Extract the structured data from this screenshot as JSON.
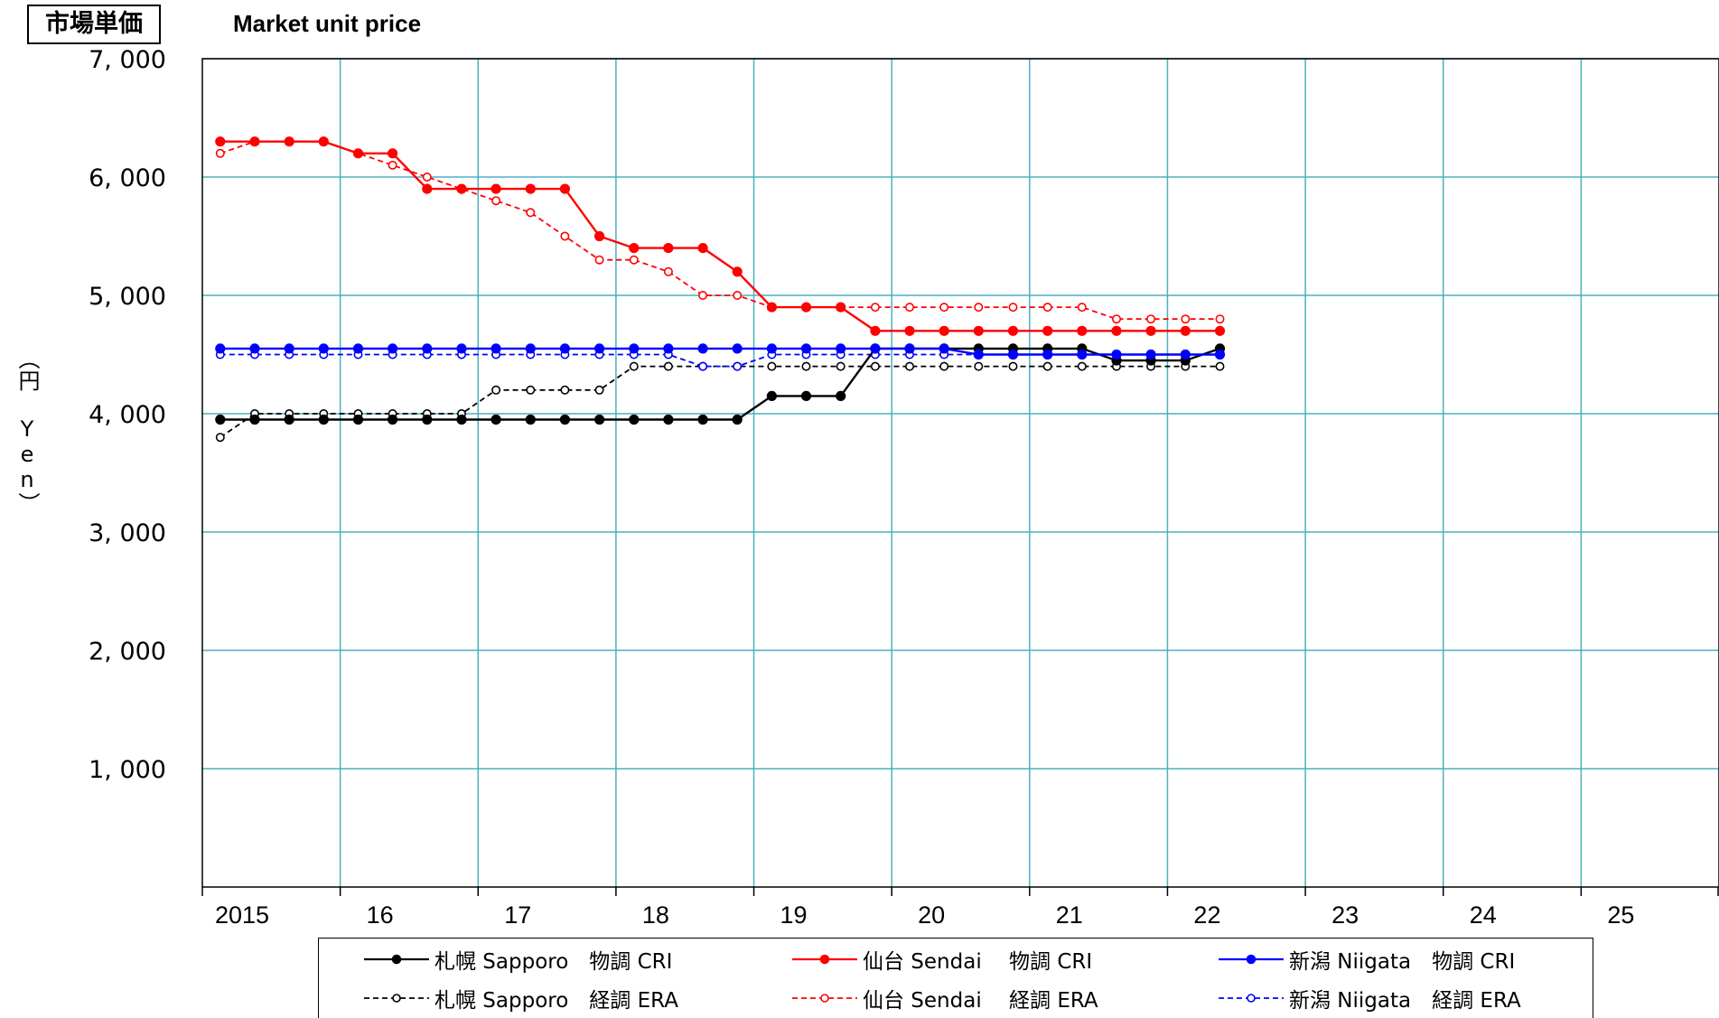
{
  "title_jp": "市場単価",
  "title_en": "Market unit price",
  "chart_data": {
    "type": "line",
    "ylabel": "（円 Yen）",
    "xlim": [
      2015,
      2026
    ],
    "ylim": [
      0,
      7000
    ],
    "yticks": [
      1000,
      2000,
      3000,
      4000,
      5000,
      6000,
      7000
    ],
    "ytick_labels": [
      "1, 000",
      "2, 000",
      "3, 000",
      "4, 000",
      "5, 000",
      "6, 000",
      "7, 000"
    ],
    "xticks": [
      2015,
      2016,
      2017,
      2018,
      2019,
      2020,
      2021,
      2022,
      2023,
      2024,
      2025
    ],
    "xtick_labels": [
      "2015",
      "16",
      "17",
      "18",
      "19",
      "20",
      "21",
      "22",
      "23",
      "24",
      "25"
    ],
    "grid": true,
    "legend_position": "bottom",
    "series": [
      {
        "name": "札幌 Sapporo　物調 CRI",
        "color": "#000000",
        "style": "solid",
        "marker": "filled",
        "points": [
          [
            2015.13,
            3950
          ],
          [
            2015.38,
            3950
          ],
          [
            2015.63,
            3950
          ],
          [
            2015.88,
            3950
          ],
          [
            2016.13,
            3950
          ],
          [
            2016.38,
            3950
          ],
          [
            2016.63,
            3950
          ],
          [
            2016.88,
            3950
          ],
          [
            2017.13,
            3950
          ],
          [
            2017.38,
            3950
          ],
          [
            2017.63,
            3950
          ],
          [
            2017.88,
            3950
          ],
          [
            2018.13,
            3950
          ],
          [
            2018.38,
            3950
          ],
          [
            2018.63,
            3950
          ],
          [
            2018.88,
            3950
          ],
          [
            2019.13,
            4150
          ],
          [
            2019.38,
            4150
          ],
          [
            2019.63,
            4150
          ],
          [
            2019.88,
            4550
          ],
          [
            2020.13,
            4550
          ],
          [
            2020.38,
            4550
          ],
          [
            2020.63,
            4550
          ],
          [
            2020.88,
            4550
          ],
          [
            2021.13,
            4550
          ],
          [
            2021.38,
            4550
          ],
          [
            2021.63,
            4450
          ],
          [
            2021.88,
            4450
          ],
          [
            2022.13,
            4450
          ],
          [
            2022.38,
            4550
          ]
        ]
      },
      {
        "name": "札幌 Sapporo　経調 ERA",
        "color": "#000000",
        "style": "dashed",
        "marker": "hollow",
        "points": [
          [
            2015.13,
            3800
          ],
          [
            2015.38,
            4000
          ],
          [
            2015.63,
            4000
          ],
          [
            2015.88,
            4000
          ],
          [
            2016.13,
            4000
          ],
          [
            2016.38,
            4000
          ],
          [
            2016.63,
            4000
          ],
          [
            2016.88,
            4000
          ],
          [
            2017.13,
            4200
          ],
          [
            2017.38,
            4200
          ],
          [
            2017.63,
            4200
          ],
          [
            2017.88,
            4200
          ],
          [
            2018.13,
            4400
          ],
          [
            2018.38,
            4400
          ],
          [
            2018.63,
            4400
          ],
          [
            2018.88,
            4400
          ],
          [
            2019.13,
            4400
          ],
          [
            2019.38,
            4400
          ],
          [
            2019.63,
            4400
          ],
          [
            2019.88,
            4400
          ],
          [
            2020.13,
            4400
          ],
          [
            2020.38,
            4400
          ],
          [
            2020.63,
            4400
          ],
          [
            2020.88,
            4400
          ],
          [
            2021.13,
            4400
          ],
          [
            2021.38,
            4400
          ],
          [
            2021.63,
            4400
          ],
          [
            2021.88,
            4400
          ],
          [
            2022.13,
            4400
          ],
          [
            2022.38,
            4400
          ]
        ]
      },
      {
        "name": "仙台 Sendai　 物調 CRI",
        "color": "#ff0000",
        "style": "solid",
        "marker": "filled",
        "points": [
          [
            2015.13,
            6300
          ],
          [
            2015.38,
            6300
          ],
          [
            2015.63,
            6300
          ],
          [
            2015.88,
            6300
          ],
          [
            2016.13,
            6200
          ],
          [
            2016.38,
            6200
          ],
          [
            2016.63,
            5900
          ],
          [
            2016.88,
            5900
          ],
          [
            2017.13,
            5900
          ],
          [
            2017.38,
            5900
          ],
          [
            2017.63,
            5900
          ],
          [
            2017.88,
            5500
          ],
          [
            2018.13,
            5400
          ],
          [
            2018.38,
            5400
          ],
          [
            2018.63,
            5400
          ],
          [
            2018.88,
            5200
          ],
          [
            2019.13,
            4900
          ],
          [
            2019.38,
            4900
          ],
          [
            2019.63,
            4900
          ],
          [
            2019.88,
            4700
          ],
          [
            2020.13,
            4700
          ],
          [
            2020.38,
            4700
          ],
          [
            2020.63,
            4700
          ],
          [
            2020.88,
            4700
          ],
          [
            2021.13,
            4700
          ],
          [
            2021.38,
            4700
          ],
          [
            2021.63,
            4700
          ],
          [
            2021.88,
            4700
          ],
          [
            2022.13,
            4700
          ],
          [
            2022.38,
            4700
          ]
        ]
      },
      {
        "name": "仙台 Sendai　 経調 ERA",
        "color": "#ff0000",
        "style": "dashed",
        "marker": "hollow",
        "points": [
          [
            2015.13,
            6200
          ],
          [
            2015.38,
            6300
          ],
          [
            2015.63,
            6300
          ],
          [
            2015.88,
            6300
          ],
          [
            2016.13,
            6200
          ],
          [
            2016.38,
            6100
          ],
          [
            2016.63,
            6000
          ],
          [
            2016.88,
            5900
          ],
          [
            2017.13,
            5800
          ],
          [
            2017.38,
            5700
          ],
          [
            2017.63,
            5500
          ],
          [
            2017.88,
            5300
          ],
          [
            2018.13,
            5300
          ],
          [
            2018.38,
            5200
          ],
          [
            2018.63,
            5000
          ],
          [
            2018.88,
            5000
          ],
          [
            2019.13,
            4900
          ],
          [
            2019.38,
            4900
          ],
          [
            2019.63,
            4900
          ],
          [
            2019.88,
            4900
          ],
          [
            2020.13,
            4900
          ],
          [
            2020.38,
            4900
          ],
          [
            2020.63,
            4900
          ],
          [
            2020.88,
            4900
          ],
          [
            2021.13,
            4900
          ],
          [
            2021.38,
            4900
          ],
          [
            2021.63,
            4800
          ],
          [
            2021.88,
            4800
          ],
          [
            2022.13,
            4800
          ],
          [
            2022.38,
            4800
          ]
        ]
      },
      {
        "name": "新潟 Niigata　物調 CRI",
        "color": "#0000ff",
        "style": "solid",
        "marker": "filled",
        "points": [
          [
            2015.13,
            4550
          ],
          [
            2015.38,
            4550
          ],
          [
            2015.63,
            4550
          ],
          [
            2015.88,
            4550
          ],
          [
            2016.13,
            4550
          ],
          [
            2016.38,
            4550
          ],
          [
            2016.63,
            4550
          ],
          [
            2016.88,
            4550
          ],
          [
            2017.13,
            4550
          ],
          [
            2017.38,
            4550
          ],
          [
            2017.63,
            4550
          ],
          [
            2017.88,
            4550
          ],
          [
            2018.13,
            4550
          ],
          [
            2018.38,
            4550
          ],
          [
            2018.63,
            4550
          ],
          [
            2018.88,
            4550
          ],
          [
            2019.13,
            4550
          ],
          [
            2019.38,
            4550
          ],
          [
            2019.63,
            4550
          ],
          [
            2019.88,
            4550
          ],
          [
            2020.13,
            4550
          ],
          [
            2020.38,
            4550
          ],
          [
            2020.63,
            4500
          ],
          [
            2020.88,
            4500
          ],
          [
            2021.13,
            4500
          ],
          [
            2021.38,
            4500
          ],
          [
            2021.63,
            4500
          ],
          [
            2021.88,
            4500
          ],
          [
            2022.13,
            4500
          ],
          [
            2022.38,
            4500
          ]
        ]
      },
      {
        "name": "新潟 Niigata　経調 ERA",
        "color": "#0000ff",
        "style": "dashed",
        "marker": "hollow",
        "points": [
          [
            2015.13,
            4500
          ],
          [
            2015.38,
            4500
          ],
          [
            2015.63,
            4500
          ],
          [
            2015.88,
            4500
          ],
          [
            2016.13,
            4500
          ],
          [
            2016.38,
            4500
          ],
          [
            2016.63,
            4500
          ],
          [
            2016.88,
            4500
          ],
          [
            2017.13,
            4500
          ],
          [
            2017.38,
            4500
          ],
          [
            2017.63,
            4500
          ],
          [
            2017.88,
            4500
          ],
          [
            2018.13,
            4500
          ],
          [
            2018.38,
            4500
          ],
          [
            2018.63,
            4400
          ],
          [
            2018.88,
            4400
          ],
          [
            2019.13,
            4500
          ],
          [
            2019.38,
            4500
          ],
          [
            2019.63,
            4500
          ],
          [
            2019.88,
            4500
          ],
          [
            2020.13,
            4500
          ],
          [
            2020.38,
            4500
          ],
          [
            2020.63,
            4500
          ],
          [
            2020.88,
            4500
          ],
          [
            2021.13,
            4500
          ],
          [
            2021.38,
            4500
          ],
          [
            2021.63,
            4500
          ],
          [
            2021.88,
            4500
          ],
          [
            2022.13,
            4500
          ],
          [
            2022.38,
            4500
          ]
        ]
      }
    ]
  }
}
